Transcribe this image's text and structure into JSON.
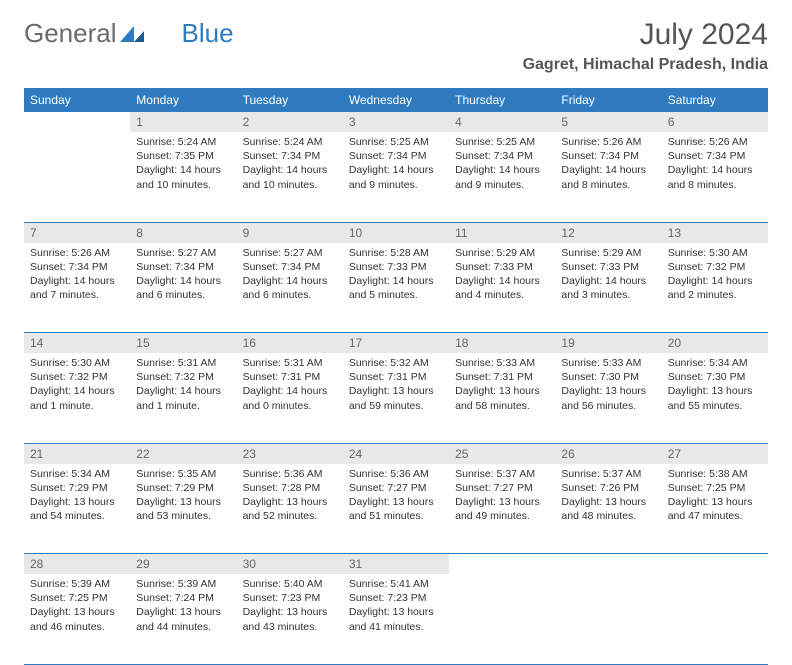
{
  "logo": {
    "general": "General",
    "blue": "Blue"
  },
  "title": "July 2024",
  "location": "Gagret, Himachal Pradesh, India",
  "colors": {
    "header_bg": "#2e7cbf",
    "header_fg": "#ffffff",
    "daynum_bg": "#e8e8e8",
    "daynum_fg": "#666666",
    "border": "#2e7cbf",
    "body_text": "#333333",
    "page_bg": "#ffffff"
  },
  "weekdays": [
    "Sunday",
    "Monday",
    "Tuesday",
    "Wednesday",
    "Thursday",
    "Friday",
    "Saturday"
  ],
  "weeks": [
    {
      "nums": [
        "",
        "1",
        "2",
        "3",
        "4",
        "5",
        "6"
      ],
      "cells": [
        null,
        {
          "sunrise": "Sunrise: 5:24 AM",
          "sunset": "Sunset: 7:35 PM",
          "day1": "Daylight: 14 hours",
          "day2": "and 10 minutes."
        },
        {
          "sunrise": "Sunrise: 5:24 AM",
          "sunset": "Sunset: 7:34 PM",
          "day1": "Daylight: 14 hours",
          "day2": "and 10 minutes."
        },
        {
          "sunrise": "Sunrise: 5:25 AM",
          "sunset": "Sunset: 7:34 PM",
          "day1": "Daylight: 14 hours",
          "day2": "and 9 minutes."
        },
        {
          "sunrise": "Sunrise: 5:25 AM",
          "sunset": "Sunset: 7:34 PM",
          "day1": "Daylight: 14 hours",
          "day2": "and 9 minutes."
        },
        {
          "sunrise": "Sunrise: 5:26 AM",
          "sunset": "Sunset: 7:34 PM",
          "day1": "Daylight: 14 hours",
          "day2": "and 8 minutes."
        },
        {
          "sunrise": "Sunrise: 5:26 AM",
          "sunset": "Sunset: 7:34 PM",
          "day1": "Daylight: 14 hours",
          "day2": "and 8 minutes."
        }
      ]
    },
    {
      "nums": [
        "7",
        "8",
        "9",
        "10",
        "11",
        "12",
        "13"
      ],
      "cells": [
        {
          "sunrise": "Sunrise: 5:26 AM",
          "sunset": "Sunset: 7:34 PM",
          "day1": "Daylight: 14 hours",
          "day2": "and 7 minutes."
        },
        {
          "sunrise": "Sunrise: 5:27 AM",
          "sunset": "Sunset: 7:34 PM",
          "day1": "Daylight: 14 hours",
          "day2": "and 6 minutes."
        },
        {
          "sunrise": "Sunrise: 5:27 AM",
          "sunset": "Sunset: 7:34 PM",
          "day1": "Daylight: 14 hours",
          "day2": "and 6 minutes."
        },
        {
          "sunrise": "Sunrise: 5:28 AM",
          "sunset": "Sunset: 7:33 PM",
          "day1": "Daylight: 14 hours",
          "day2": "and 5 minutes."
        },
        {
          "sunrise": "Sunrise: 5:29 AM",
          "sunset": "Sunset: 7:33 PM",
          "day1": "Daylight: 14 hours",
          "day2": "and 4 minutes."
        },
        {
          "sunrise": "Sunrise: 5:29 AM",
          "sunset": "Sunset: 7:33 PM",
          "day1": "Daylight: 14 hours",
          "day2": "and 3 minutes."
        },
        {
          "sunrise": "Sunrise: 5:30 AM",
          "sunset": "Sunset: 7:32 PM",
          "day1": "Daylight: 14 hours",
          "day2": "and 2 minutes."
        }
      ]
    },
    {
      "nums": [
        "14",
        "15",
        "16",
        "17",
        "18",
        "19",
        "20"
      ],
      "cells": [
        {
          "sunrise": "Sunrise: 5:30 AM",
          "sunset": "Sunset: 7:32 PM",
          "day1": "Daylight: 14 hours",
          "day2": "and 1 minute."
        },
        {
          "sunrise": "Sunrise: 5:31 AM",
          "sunset": "Sunset: 7:32 PM",
          "day1": "Daylight: 14 hours",
          "day2": "and 1 minute."
        },
        {
          "sunrise": "Sunrise: 5:31 AM",
          "sunset": "Sunset: 7:31 PM",
          "day1": "Daylight: 14 hours",
          "day2": "and 0 minutes."
        },
        {
          "sunrise": "Sunrise: 5:32 AM",
          "sunset": "Sunset: 7:31 PM",
          "day1": "Daylight: 13 hours",
          "day2": "and 59 minutes."
        },
        {
          "sunrise": "Sunrise: 5:33 AM",
          "sunset": "Sunset: 7:31 PM",
          "day1": "Daylight: 13 hours",
          "day2": "and 58 minutes."
        },
        {
          "sunrise": "Sunrise: 5:33 AM",
          "sunset": "Sunset: 7:30 PM",
          "day1": "Daylight: 13 hours",
          "day2": "and 56 minutes."
        },
        {
          "sunrise": "Sunrise: 5:34 AM",
          "sunset": "Sunset: 7:30 PM",
          "day1": "Daylight: 13 hours",
          "day2": "and 55 minutes."
        }
      ]
    },
    {
      "nums": [
        "21",
        "22",
        "23",
        "24",
        "25",
        "26",
        "27"
      ],
      "cells": [
        {
          "sunrise": "Sunrise: 5:34 AM",
          "sunset": "Sunset: 7:29 PM",
          "day1": "Daylight: 13 hours",
          "day2": "and 54 minutes."
        },
        {
          "sunrise": "Sunrise: 5:35 AM",
          "sunset": "Sunset: 7:29 PM",
          "day1": "Daylight: 13 hours",
          "day2": "and 53 minutes."
        },
        {
          "sunrise": "Sunrise: 5:36 AM",
          "sunset": "Sunset: 7:28 PM",
          "day1": "Daylight: 13 hours",
          "day2": "and 52 minutes."
        },
        {
          "sunrise": "Sunrise: 5:36 AM",
          "sunset": "Sunset: 7:27 PM",
          "day1": "Daylight: 13 hours",
          "day2": "and 51 minutes."
        },
        {
          "sunrise": "Sunrise: 5:37 AM",
          "sunset": "Sunset: 7:27 PM",
          "day1": "Daylight: 13 hours",
          "day2": "and 49 minutes."
        },
        {
          "sunrise": "Sunrise: 5:37 AM",
          "sunset": "Sunset: 7:26 PM",
          "day1": "Daylight: 13 hours",
          "day2": "and 48 minutes."
        },
        {
          "sunrise": "Sunrise: 5:38 AM",
          "sunset": "Sunset: 7:25 PM",
          "day1": "Daylight: 13 hours",
          "day2": "and 47 minutes."
        }
      ]
    },
    {
      "nums": [
        "28",
        "29",
        "30",
        "31",
        "",
        "",
        ""
      ],
      "cells": [
        {
          "sunrise": "Sunrise: 5:39 AM",
          "sunset": "Sunset: 7:25 PM",
          "day1": "Daylight: 13 hours",
          "day2": "and 46 minutes."
        },
        {
          "sunrise": "Sunrise: 5:39 AM",
          "sunset": "Sunset: 7:24 PM",
          "day1": "Daylight: 13 hours",
          "day2": "and 44 minutes."
        },
        {
          "sunrise": "Sunrise: 5:40 AM",
          "sunset": "Sunset: 7:23 PM",
          "day1": "Daylight: 13 hours",
          "day2": "and 43 minutes."
        },
        {
          "sunrise": "Sunrise: 5:41 AM",
          "sunset": "Sunset: 7:23 PM",
          "day1": "Daylight: 13 hours",
          "day2": "and 41 minutes."
        },
        null,
        null,
        null
      ]
    }
  ]
}
